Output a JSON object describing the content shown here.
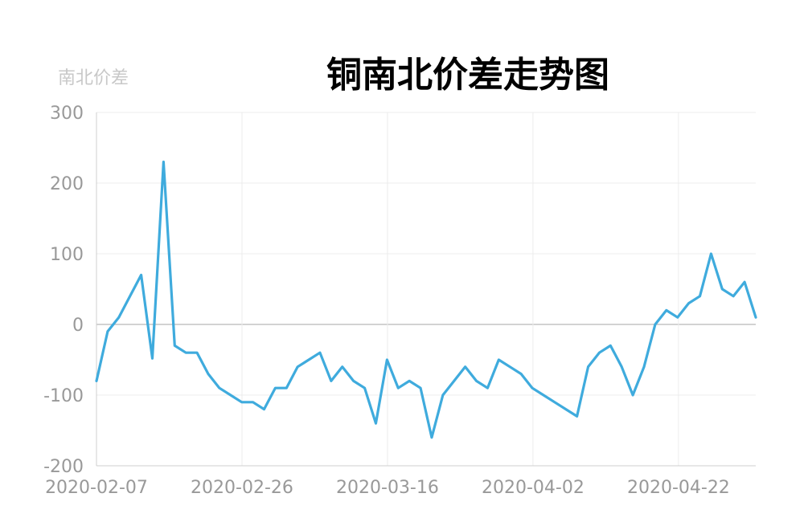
{
  "chart_data": {
    "type": "line",
    "title": "铜南北价差走势图",
    "ylabel": "南北价差",
    "xlabel": "",
    "ylim": [
      -200,
      300
    ],
    "yticks": [
      300,
      200,
      100,
      0,
      -100,
      -200
    ],
    "x_tick_labels": [
      "2020-02-07",
      "2020-02-26",
      "2020-03-16",
      "2020-04-02",
      "2020-04-22"
    ],
    "grid": true,
    "series": [
      {
        "color": "#3fabdd",
        "values": [
          -80,
          -10,
          10,
          40,
          70,
          -48,
          230,
          -30,
          -40,
          -40,
          -70,
          -90,
          -100,
          -110,
          -110,
          -120,
          -90,
          -90,
          -60,
          -50,
          -40,
          -80,
          -60,
          -80,
          -90,
          -140,
          -50,
          -90,
          -80,
          -90,
          -160,
          -100,
          -80,
          -60,
          -80,
          -90,
          -50,
          -60,
          -70,
          -90,
          -100,
          -110,
          -120,
          -130,
          -60,
          -40,
          -30,
          -60,
          -100,
          -60,
          0,
          20,
          10,
          30,
          40,
          100,
          50,
          40,
          60,
          10
        ]
      }
    ]
  }
}
